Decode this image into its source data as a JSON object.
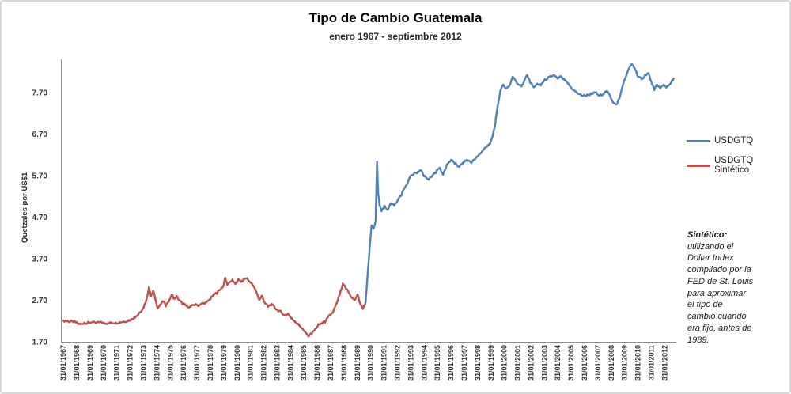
{
  "window": {
    "background": "#FFFFFF",
    "border_color": "#D7D7D7"
  },
  "header": {
    "title": "Tipo de Cambio Guatemala",
    "subtitle": "enero 1967 - septiembre 2012"
  },
  "y_axis": {
    "title": "Quetzales por US$1",
    "ticks": [
      "1.70",
      "2.70",
      "3.70",
      "4.70",
      "5.70",
      "6.70",
      "7.70"
    ]
  },
  "x_axis": {
    "ticks": [
      "31/01/1967",
      "31/01/1968",
      "31/01/1969",
      "31/01/1970",
      "31/01/1971",
      "31/01/1972",
      "31/01/1973",
      "31/01/1974",
      "31/01/1975",
      "31/01/1976",
      "31/01/1977",
      "31/01/1978",
      "31/01/1979",
      "31/01/1980",
      "31/01/1981",
      "31/01/1982",
      "31/01/1983",
      "31/01/1984",
      "31/01/1985",
      "31/01/1986",
      "31/01/1987",
      "31/01/1988",
      "31/01/1989",
      "31/01/1990",
      "31/01/1991",
      "31/01/1992",
      "31/01/1993",
      "31/01/1994",
      "31/01/1995",
      "31/01/1996",
      "31/01/1997",
      "31/01/1998",
      "31/01/1999",
      "31/01/2000",
      "31/01/2001",
      "31/01/2002",
      "31/01/2003",
      "31/01/2004",
      "31/01/2005",
      "31/01/2006",
      "31/01/2007",
      "31/01/2008",
      "31/01/2009",
      "31/01/2010",
      "31/01/2011",
      "31/01/2012"
    ]
  },
  "legend": {
    "items": [
      {
        "label": "USDGTQ",
        "color": "#4F81BD"
      },
      {
        "label": "USDGTQ Sintético",
        "color": "#C0504D"
      }
    ]
  },
  "note": {
    "lead": "Sintético:",
    "body": "utilizando el\nDollar Index\ncompliado por la\nFED de St. Louis\npara aproximar\nel tipo de\ncambio cuando\nera fijo, antes de\n1989."
  },
  "chart_data": {
    "type": "line",
    "title": "Tipo de Cambio Guatemala",
    "subtitle": "enero 1967 - septiembre 2012",
    "xlabel": "",
    "ylabel": "Quetzales por US$1",
    "ylim": [
      1.7,
      8.5
    ],
    "xlim": [
      1967.0,
      2012.75
    ],
    "y_tick_values": [
      1.7,
      2.7,
      3.7,
      4.7,
      5.7,
      6.7,
      7.7
    ],
    "grid": false,
    "legend_position": "right",
    "axis_color": "#8C8C8C",
    "series": [
      {
        "name": "USDGTQ Sintético",
        "color": "#C0504D",
        "points": [
          [
            1967.08,
            2.21
          ],
          [
            1967.35,
            2.2
          ],
          [
            1967.6,
            2.18
          ],
          [
            1967.9,
            2.19
          ],
          [
            1968.15,
            2.14
          ],
          [
            1968.4,
            2.12
          ],
          [
            1968.65,
            2.16
          ],
          [
            1968.9,
            2.15
          ],
          [
            1969.2,
            2.17
          ],
          [
            1969.5,
            2.15
          ],
          [
            1969.8,
            2.17
          ],
          [
            1970.1,
            2.16
          ],
          [
            1970.4,
            2.14
          ],
          [
            1970.7,
            2.16
          ],
          [
            1971.0,
            2.16
          ],
          [
            1971.3,
            2.17
          ],
          [
            1971.6,
            2.19
          ],
          [
            1971.9,
            2.21
          ],
          [
            1972.15,
            2.23
          ],
          [
            1972.4,
            2.29
          ],
          [
            1972.65,
            2.34
          ],
          [
            1972.9,
            2.42
          ],
          [
            1973.1,
            2.52
          ],
          [
            1973.3,
            2.72
          ],
          [
            1973.5,
            3.0
          ],
          [
            1973.65,
            2.79
          ],
          [
            1973.8,
            2.93
          ],
          [
            1974.0,
            2.68
          ],
          [
            1974.15,
            2.51
          ],
          [
            1974.35,
            2.6
          ],
          [
            1974.55,
            2.67
          ],
          [
            1974.75,
            2.57
          ],
          [
            1975.0,
            2.7
          ],
          [
            1975.2,
            2.84
          ],
          [
            1975.4,
            2.73
          ],
          [
            1975.55,
            2.8
          ],
          [
            1975.75,
            2.7
          ],
          [
            1976.0,
            2.62
          ],
          [
            1976.3,
            2.56
          ],
          [
            1976.6,
            2.54
          ],
          [
            1976.9,
            2.59
          ],
          [
            1977.2,
            2.58
          ],
          [
            1977.5,
            2.62
          ],
          [
            1977.8,
            2.65
          ],
          [
            1978.1,
            2.74
          ],
          [
            1978.35,
            2.83
          ],
          [
            1978.6,
            2.88
          ],
          [
            1978.85,
            2.96
          ],
          [
            1979.05,
            3.05
          ],
          [
            1979.2,
            3.24
          ],
          [
            1979.35,
            3.07
          ],
          [
            1979.55,
            3.14
          ],
          [
            1979.75,
            3.18
          ],
          [
            1979.95,
            3.09
          ],
          [
            1980.15,
            3.19
          ],
          [
            1980.4,
            3.14
          ],
          [
            1980.6,
            3.2
          ],
          [
            1980.8,
            3.23
          ],
          [
            1981.0,
            3.15
          ],
          [
            1981.25,
            3.07
          ],
          [
            1981.5,
            2.92
          ],
          [
            1981.75,
            2.71
          ],
          [
            1981.95,
            2.81
          ],
          [
            1982.15,
            2.64
          ],
          [
            1982.4,
            2.54
          ],
          [
            1982.65,
            2.61
          ],
          [
            1982.9,
            2.52
          ],
          [
            1983.15,
            2.46
          ],
          [
            1983.4,
            2.41
          ],
          [
            1983.65,
            2.34
          ],
          [
            1983.9,
            2.38
          ],
          [
            1984.15,
            2.26
          ],
          [
            1984.4,
            2.2
          ],
          [
            1984.65,
            2.12
          ],
          [
            1984.9,
            2.04
          ],
          [
            1985.15,
            1.94
          ],
          [
            1985.4,
            1.85
          ],
          [
            1985.65,
            1.89
          ],
          [
            1985.9,
            1.99
          ],
          [
            1986.15,
            2.1
          ],
          [
            1986.4,
            2.14
          ],
          [
            1986.7,
            2.19
          ],
          [
            1987.0,
            2.33
          ],
          [
            1987.25,
            2.41
          ],
          [
            1987.5,
            2.6
          ],
          [
            1987.75,
            2.82
          ],
          [
            1988.0,
            3.08
          ],
          [
            1988.2,
            3.0
          ],
          [
            1988.45,
            2.88
          ],
          [
            1988.7,
            2.75
          ],
          [
            1988.9,
            2.71
          ],
          [
            1989.1,
            2.84
          ],
          [
            1989.3,
            2.62
          ],
          [
            1989.5,
            2.49
          ],
          [
            1989.7,
            2.65
          ]
        ]
      },
      {
        "name": "USDGTQ",
        "color": "#4F81BD",
        "points": [
          [
            1989.7,
            2.65
          ],
          [
            1989.85,
            3.3
          ],
          [
            1990.0,
            3.95
          ],
          [
            1990.15,
            4.5
          ],
          [
            1990.3,
            4.42
          ],
          [
            1990.45,
            4.62
          ],
          [
            1990.55,
            6.04
          ],
          [
            1990.65,
            5.25
          ],
          [
            1990.75,
            4.97
          ],
          [
            1990.9,
            4.84
          ],
          [
            1991.1,
            4.97
          ],
          [
            1991.35,
            4.88
          ],
          [
            1991.6,
            5.04
          ],
          [
            1991.85,
            4.97
          ],
          [
            1992.1,
            5.1
          ],
          [
            1992.4,
            5.25
          ],
          [
            1992.7,
            5.45
          ],
          [
            1993.0,
            5.65
          ],
          [
            1993.3,
            5.74
          ],
          [
            1993.6,
            5.79
          ],
          [
            1993.85,
            5.83
          ],
          [
            1994.1,
            5.68
          ],
          [
            1994.4,
            5.6
          ],
          [
            1994.7,
            5.7
          ],
          [
            1995.0,
            5.8
          ],
          [
            1995.25,
            5.89
          ],
          [
            1995.5,
            5.72
          ],
          [
            1995.8,
            5.97
          ],
          [
            1996.1,
            6.08
          ],
          [
            1996.4,
            5.99
          ],
          [
            1996.7,
            5.91
          ],
          [
            1997.0,
            6.02
          ],
          [
            1997.3,
            6.08
          ],
          [
            1997.6,
            6.02
          ],
          [
            1997.9,
            6.1
          ],
          [
            1998.2,
            6.21
          ],
          [
            1998.5,
            6.31
          ],
          [
            1998.8,
            6.42
          ],
          [
            1999.0,
            6.46
          ],
          [
            1999.2,
            6.65
          ],
          [
            1999.4,
            6.94
          ],
          [
            1999.6,
            7.41
          ],
          [
            1999.8,
            7.76
          ],
          [
            2000.0,
            7.89
          ],
          [
            2000.25,
            7.8
          ],
          [
            2000.5,
            7.89
          ],
          [
            2000.7,
            8.08
          ],
          [
            2000.9,
            8.0
          ],
          [
            2001.1,
            7.91
          ],
          [
            2001.35,
            7.85
          ],
          [
            2001.6,
            8.0
          ],
          [
            2001.8,
            8.12
          ],
          [
            2002.0,
            7.95
          ],
          [
            2002.3,
            7.83
          ],
          [
            2002.55,
            7.91
          ],
          [
            2002.8,
            7.87
          ],
          [
            2003.05,
            7.99
          ],
          [
            2003.3,
            8.04
          ],
          [
            2003.55,
            8.08
          ],
          [
            2003.8,
            8.12
          ],
          [
            2004.05,
            8.04
          ],
          [
            2004.3,
            8.08
          ],
          [
            2004.6,
            7.99
          ],
          [
            2004.85,
            7.91
          ],
          [
            2005.1,
            7.81
          ],
          [
            2005.4,
            7.72
          ],
          [
            2005.7,
            7.66
          ],
          [
            2006.0,
            7.62
          ],
          [
            2006.3,
            7.64
          ],
          [
            2006.6,
            7.66
          ],
          [
            2006.9,
            7.7
          ],
          [
            2007.2,
            7.62
          ],
          [
            2007.5,
            7.68
          ],
          [
            2007.75,
            7.74
          ],
          [
            2008.0,
            7.62
          ],
          [
            2008.25,
            7.45
          ],
          [
            2008.45,
            7.41
          ],
          [
            2008.7,
            7.57
          ],
          [
            2008.95,
            7.88
          ],
          [
            2009.2,
            8.1
          ],
          [
            2009.45,
            8.31
          ],
          [
            2009.65,
            8.38
          ],
          [
            2009.85,
            8.28
          ],
          [
            2010.1,
            8.08
          ],
          [
            2010.35,
            8.02
          ],
          [
            2010.6,
            8.12
          ],
          [
            2010.85,
            8.17
          ],
          [
            2011.1,
            7.95
          ],
          [
            2011.3,
            7.76
          ],
          [
            2011.5,
            7.89
          ],
          [
            2011.75,
            7.8
          ],
          [
            2012.0,
            7.89
          ],
          [
            2012.25,
            7.83
          ],
          [
            2012.5,
            7.91
          ],
          [
            2012.75,
            8.04
          ]
        ]
      }
    ]
  }
}
